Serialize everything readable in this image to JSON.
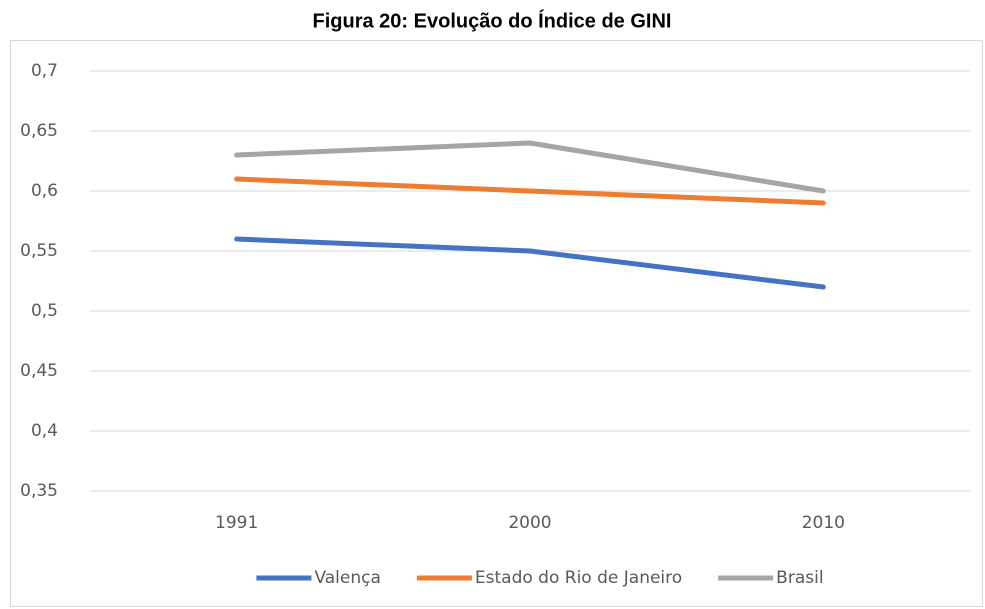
{
  "chart_data": {
    "type": "line",
    "title": "Figura 20: Evolução do Índice de GINI",
    "categories": [
      "1991",
      "2000",
      "2010"
    ],
    "series": [
      {
        "name": "Valença",
        "color": "#4472c4",
        "values": [
          0.56,
          0.55,
          0.52
        ]
      },
      {
        "name": "Estado do Rio de Janeiro",
        "color": "#ed7d31",
        "values": [
          0.61,
          0.6,
          0.59
        ]
      },
      {
        "name": "Brasil",
        "color": "#a5a5a5",
        "values": [
          0.63,
          0.64,
          0.6
        ]
      }
    ],
    "ylim": [
      0.35,
      0.7
    ],
    "yticks": [
      {
        "value": 0.35,
        "label": "0,35"
      },
      {
        "value": 0.4,
        "label": "0,4"
      },
      {
        "value": 0.45,
        "label": "0,45"
      },
      {
        "value": 0.5,
        "label": "0,5"
      },
      {
        "value": 0.55,
        "label": "0,55"
      },
      {
        "value": 0.6,
        "label": "0,6"
      },
      {
        "value": 0.65,
        "label": "0,65"
      },
      {
        "value": 0.7,
        "label": "0,7"
      }
    ],
    "grid": true,
    "legend": "bottom"
  }
}
